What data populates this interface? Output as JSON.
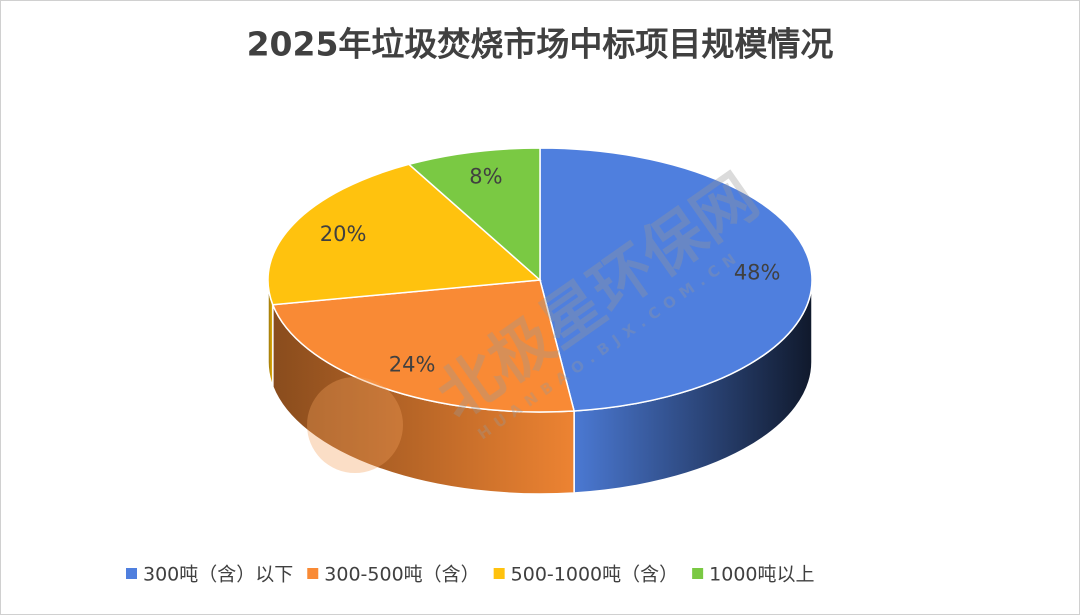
{
  "chart_data": {
    "type": "pie3d",
    "title": "2025年垃圾焚烧市场中标项目规模情况",
    "categories": [
      "300吨（含）以下",
      "300-500吨（含）",
      "500-1000吨（含）",
      "1000吨以上"
    ],
    "values": [
      48,
      24,
      20,
      8
    ],
    "value_labels": [
      "48%",
      "24%",
      "20%",
      "8%"
    ],
    "colors": [
      "#4f7fde",
      "#f98a35",
      "#ffc20e",
      "#7ac943"
    ],
    "legend": "bottom"
  },
  "watermark": {
    "text": "北极星环保网",
    "url": "HUANBAO.BJX.COM.CN"
  }
}
